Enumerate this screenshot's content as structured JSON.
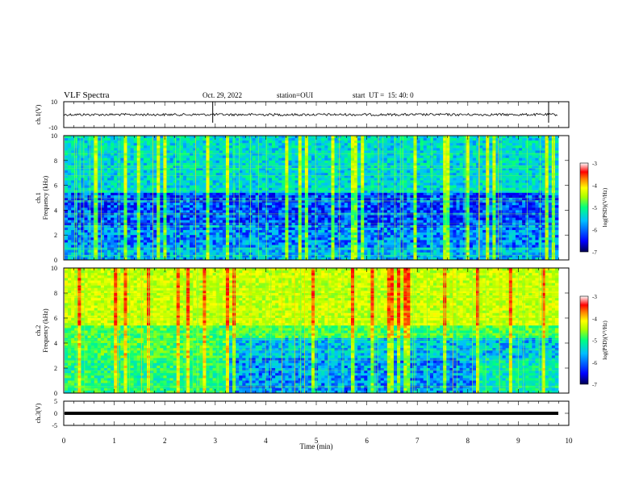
{
  "header": {
    "title": "VLF Spectra",
    "date": "Oct. 29, 2022",
    "station": "station=OUI",
    "start_time": "start  UT =  15: 40: 0"
  },
  "chart_data": [
    {
      "type": "line",
      "ylabel": "ch.1(V)",
      "ylim": [
        -10,
        10
      ],
      "yticks": [
        "10",
        "-10"
      ],
      "xlim": [
        0,
        10
      ],
      "series": [
        {
          "baseline": 0,
          "spikes_at_min": [
            2.95,
            9.6
          ]
        }
      ]
    },
    {
      "type": "heatmap",
      "ylabel": "ch.1\nFrequency (kHz)",
      "ylim": [
        0,
        10
      ],
      "yticks": [
        "0",
        "2",
        "4",
        "6",
        "8",
        "10"
      ],
      "xlim": [
        0,
        10
      ],
      "colorbar": {
        "label": "log(PSD)(V²/Hz)",
        "range": [
          -7,
          -3
        ],
        "ticks": [
          "-3",
          "-4",
          "-5",
          "-6",
          "-7"
        ]
      }
    },
    {
      "type": "heatmap",
      "ylabel": "ch.2\nFrequency (kHz)",
      "ylim": [
        0,
        10
      ],
      "yticks": [
        "0",
        "2",
        "4",
        "6",
        "8",
        "10"
      ],
      "xlim": [
        0,
        10
      ],
      "colorbar": {
        "label": "log(PSD)(V²/Hz)",
        "range": [
          -7,
          -3
        ],
        "ticks": [
          "-3",
          "-4",
          "-5",
          "-6",
          "-7"
        ]
      }
    },
    {
      "type": "line",
      "ylabel": "ch.3(V)",
      "ylim": [
        -5,
        5
      ],
      "yticks": [
        "5",
        "0",
        "-5"
      ],
      "xlim": [
        0,
        10
      ],
      "series": [
        {
          "baseline": 0
        }
      ]
    }
  ],
  "xaxis": {
    "label": "Time (min)",
    "ticks": [
      "0",
      "1",
      "2",
      "3",
      "4",
      "5",
      "6",
      "7",
      "8",
      "9",
      "10"
    ]
  },
  "colors": {
    "colormap": [
      "#000080",
      "#0000ff",
      "#00bfff",
      "#00ff80",
      "#aaff00",
      "#ffff00",
      "#ff8000",
      "#ff0000",
      "#ffffff"
    ]
  }
}
